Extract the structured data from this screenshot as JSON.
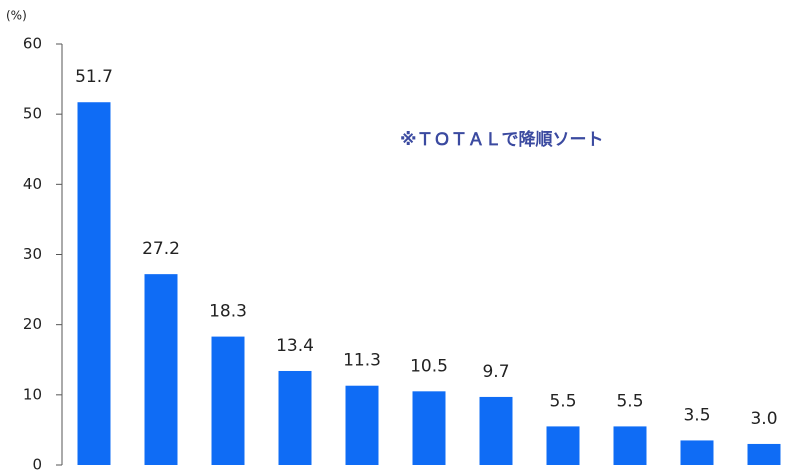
{
  "chart_data": {
    "type": "bar",
    "y_label": "(%)",
    "annotation": "※ＴＯＴＡＬで降順ソート",
    "categories": [
      null,
      null,
      null,
      null,
      null,
      null,
      null,
      null,
      null,
      null,
      null
    ],
    "values": [
      51.7,
      27.2,
      18.3,
      13.4,
      11.3,
      10.5,
      9.7,
      5.5,
      5.5,
      3.5,
      3.0
    ],
    "value_labels": [
      "51.7",
      "27.2",
      "18.3",
      "13.4",
      "11.3",
      "10.5",
      "9.7",
      "5.5",
      "5.5",
      "3.5",
      "3.0"
    ],
    "color": "#0f6cf5",
    "ylim": [
      0,
      60
    ],
    "yticks": [
      0,
      10,
      20,
      30,
      40,
      50,
      60
    ],
    "grid": false
  }
}
